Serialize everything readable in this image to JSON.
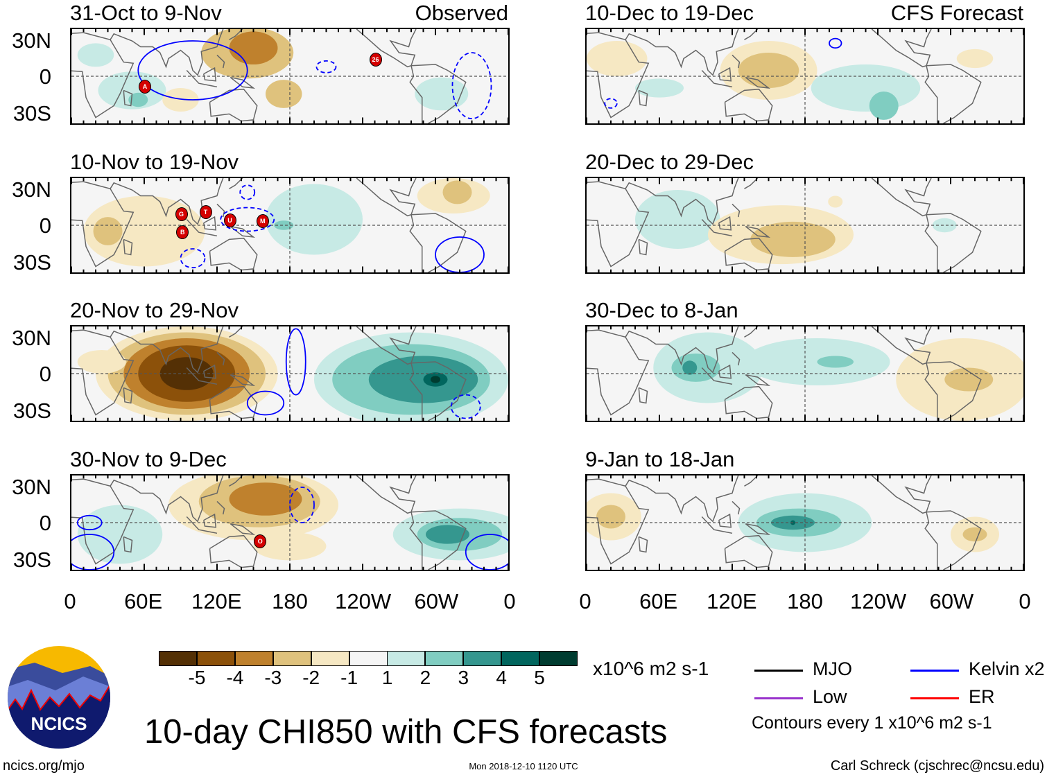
{
  "figure_title": "10-day CHI850 with CFS forecasts",
  "section_labels": {
    "observed": "Observed",
    "forecast": "CFS Forecast"
  },
  "lat_labels": [
    "30N",
    "0",
    "30S"
  ],
  "lon_labels": [
    "0",
    "60E",
    "120E",
    "180",
    "120W",
    "60W",
    "0"
  ],
  "colorbar": {
    "labels": [
      "-5",
      "-4",
      "-3",
      "-2",
      "-1",
      "1",
      "2",
      "3",
      "4",
      "5"
    ],
    "colors": [
      "#543005",
      "#8c510a",
      "#bf812d",
      "#dfc27d",
      "#f6e8c3",
      "#f5f5f5",
      "#c7eae5",
      "#80cdc1",
      "#35978f",
      "#01665e",
      "#003c30"
    ],
    "units": "x10^6 m2 s-1"
  },
  "legend": {
    "items": [
      {
        "label": "MJO",
        "color": "#000000"
      },
      {
        "label": "Kelvin x2",
        "color": "#0000ff"
      },
      {
        "label": "Low",
        "color": "#9933cc"
      },
      {
        "label": "ER",
        "color": "#ff0000"
      }
    ],
    "note": "Contours every 1 x10^6 m2 s-1"
  },
  "footer": {
    "site": "ncics.org/mjo",
    "timestamp": "Mon 2018-12-10 1120 UTC",
    "author": "Carl Schreck (cjschrec@ncsu.edu)"
  },
  "logo_text": "NCICS",
  "panels": [
    {
      "title": "31-Oct to 9-Nov",
      "tag": "observed",
      "anomalies": [
        [
          145,
          20,
          38,
          22,
          -2
        ],
        [
          150,
          24,
          20,
          14,
          -3
        ],
        [
          175,
          -15,
          15,
          12,
          -2
        ],
        [
          50,
          -12,
          28,
          16,
          1
        ],
        [
          55,
          -20,
          8,
          6,
          2
        ],
        [
          20,
          18,
          15,
          10,
          1
        ],
        [
          305,
          -15,
          22,
          14,
          1
        ],
        [
          90,
          -20,
          15,
          10,
          -1
        ]
      ],
      "kelvin": [
        [
          100,
          5,
          45,
          25,
          "solid"
        ],
        [
          330,
          -8,
          16,
          28,
          "dashed"
        ],
        [
          210,
          8,
          8,
          5,
          "dashed"
        ]
      ],
      "storms": [
        [
          "A",
          60,
          -8
        ],
        [
          "26",
          250,
          15
        ]
      ]
    },
    {
      "title": "10-Dec to 19-Dec",
      "tag": "forecast",
      "anomalies": [
        [
          25,
          15,
          25,
          15,
          -1
        ],
        [
          150,
          5,
          40,
          25,
          -1
        ],
        [
          150,
          5,
          25,
          15,
          -2
        ],
        [
          230,
          -10,
          45,
          20,
          1
        ],
        [
          245,
          -25,
          12,
          12,
          2
        ],
        [
          60,
          -10,
          20,
          8,
          1
        ],
        [
          320,
          15,
          15,
          8,
          -1
        ]
      ],
      "kelvin": [
        [
          205,
          28,
          5,
          4,
          "solid"
        ],
        [
          20,
          -23,
          5,
          4,
          "dashed"
        ]
      ],
      "storms": []
    },
    {
      "title": "10-Nov to 19-Nov",
      "tag": "observed",
      "anomalies": [
        [
          60,
          -5,
          50,
          30,
          -1
        ],
        [
          30,
          -5,
          12,
          12,
          -2
        ],
        [
          200,
          5,
          40,
          30,
          1
        ],
        [
          175,
          0,
          8,
          4,
          2
        ],
        [
          315,
          25,
          30,
          15,
          -1
        ],
        [
          318,
          28,
          12,
          10,
          -2
        ]
      ],
      "kelvin": [
        [
          100,
          -28,
          10,
          8,
          "dashed"
        ],
        [
          145,
          5,
          22,
          10,
          "dashed"
        ],
        [
          145,
          28,
          6,
          6,
          "dashed"
        ],
        [
          320,
          -25,
          20,
          15,
          "solid"
        ]
      ],
      "storms": [
        [
          "G",
          90,
          10
        ],
        [
          "T",
          110,
          12
        ],
        [
          "U",
          130,
          5
        ],
        [
          "M",
          157,
          4
        ],
        [
          "B",
          91,
          -5
        ]
      ]
    },
    {
      "title": "20-Dec to 29-Dec",
      "tag": "forecast",
      "anomalies": [
        [
          75,
          5,
          35,
          25,
          1
        ],
        [
          160,
          -8,
          60,
          25,
          -1
        ],
        [
          170,
          -12,
          35,
          15,
          -2
        ],
        [
          205,
          20,
          6,
          5,
          -1
        ],
        [
          295,
          0,
          10,
          6,
          1
        ]
      ],
      "kelvin": [],
      "storms": []
    },
    {
      "title": "20-Nov to 29-Nov",
      "tag": "observed",
      "anomalies": [
        [
          95,
          0,
          75,
          40,
          -1
        ],
        [
          95,
          0,
          65,
          35,
          -2
        ],
        [
          95,
          0,
          52,
          30,
          -3
        ],
        [
          95,
          0,
          40,
          24,
          -4
        ],
        [
          95,
          0,
          22,
          14,
          -5
        ],
        [
          280,
          -5,
          80,
          40,
          1
        ],
        [
          280,
          -5,
          65,
          30,
          2
        ],
        [
          290,
          -5,
          45,
          20,
          3
        ],
        [
          300,
          -5,
          10,
          6,
          4
        ],
        [
          300,
          -5,
          4,
          3,
          5
        ],
        [
          25,
          10,
          20,
          10,
          -1
        ]
      ],
      "kelvin": [
        [
          185,
          10,
          8,
          28,
          "solid"
        ],
        [
          160,
          -25,
          15,
          10,
          "solid"
        ],
        [
          325,
          -28,
          12,
          10,
          "dashed"
        ]
      ],
      "storms": []
    },
    {
      "title": "30-Dec to 8-Jan",
      "tag": "forecast",
      "anomalies": [
        [
          100,
          5,
          45,
          30,
          1
        ],
        [
          90,
          5,
          20,
          12,
          2
        ],
        [
          85,
          5,
          6,
          6,
          3
        ],
        [
          190,
          10,
          60,
          20,
          1
        ],
        [
          205,
          10,
          15,
          5,
          2
        ],
        [
          310,
          -5,
          55,
          35,
          -1
        ],
        [
          315,
          -5,
          20,
          10,
          -2
        ]
      ],
      "kelvin": [],
      "storms": []
    },
    {
      "title": "30-Nov to 9-Dec",
      "tag": "observed",
      "anomalies": [
        [
          150,
          15,
          70,
          30,
          -1
        ],
        [
          155,
          18,
          50,
          22,
          -2
        ],
        [
          160,
          20,
          30,
          14,
          -3
        ],
        [
          180,
          -20,
          30,
          12,
          -1
        ],
        [
          40,
          -10,
          35,
          25,
          1
        ],
        [
          320,
          -10,
          55,
          22,
          1
        ],
        [
          320,
          -10,
          35,
          14,
          2
        ],
        [
          310,
          -10,
          18,
          8,
          3
        ]
      ],
      "kelvin": [
        [
          15,
          0,
          10,
          6,
          "solid"
        ],
        [
          15,
          -25,
          20,
          15,
          "solid"
        ],
        [
          345,
          -25,
          20,
          15,
          "solid"
        ],
        [
          190,
          15,
          10,
          15,
          "dashed"
        ]
      ],
      "storms": [
        [
          "O",
          155,
          -15
        ]
      ]
    },
    {
      "title": "9-Jan to 18-Jan",
      "tag": "forecast",
      "anomalies": [
        [
          180,
          0,
          55,
          25,
          1
        ],
        [
          175,
          0,
          35,
          12,
          2
        ],
        [
          170,
          0,
          18,
          6,
          3
        ],
        [
          170,
          0,
          2,
          2,
          4
        ],
        [
          20,
          5,
          25,
          20,
          -1
        ],
        [
          20,
          5,
          12,
          10,
          -2
        ],
        [
          320,
          -10,
          20,
          15,
          -1
        ],
        [
          320,
          -10,
          10,
          6,
          -2
        ]
      ],
      "kelvin": [],
      "storms": []
    }
  ]
}
